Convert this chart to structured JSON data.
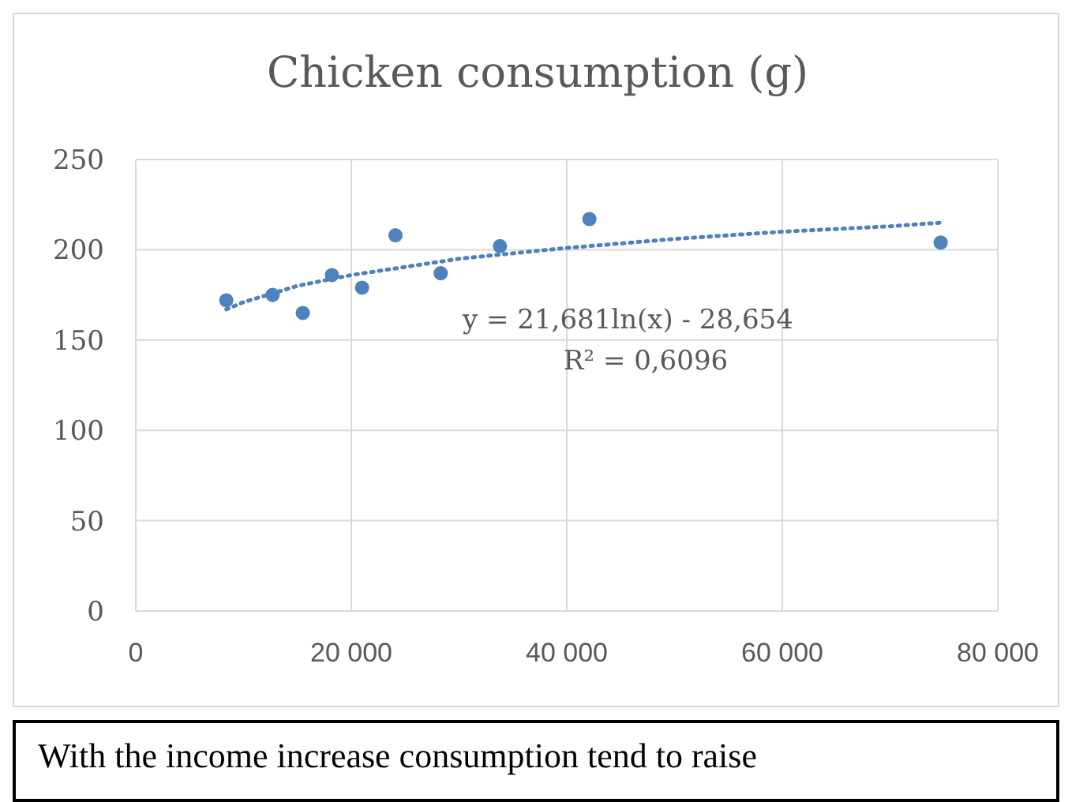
{
  "chart_data": {
    "type": "scatter",
    "title": "Chicken consumption (g)",
    "x": [
      8400,
      12700,
      15500,
      18200,
      21000,
      24100,
      28300,
      33800,
      42100,
      74700
    ],
    "series": [
      {
        "color": "#4f81bd",
        "marker": "circle",
        "values": [
          172,
          175,
          165,
          186,
          179,
          208,
          187,
          202,
          217,
          204
        ]
      },
      {
        "type": "line",
        "color": "#4f81bd",
        "marker": "none",
        "line_style": "dotted",
        "x": [
          8400,
          10000,
          15000,
          20000,
          30000,
          40000,
          50000,
          60000,
          70000,
          74700
        ],
        "values": [
          167,
          171,
          180,
          186,
          195,
          201,
          206,
          210,
          213,
          215
        ]
      }
    ],
    "xlim": [
      0,
      80000
    ],
    "xticks": [
      0,
      {
        "value": 20000,
        "label": "20 000"
      },
      {
        "value": 40000,
        "label": "40 000"
      },
      {
        "value": 60000,
        "label": "60 000"
      },
      {
        "value": 80000,
        "label": "80 000"
      }
    ],
    "ylim": [
      0,
      250
    ],
    "yticks": [
      0,
      50,
      100,
      150,
      200,
      250
    ],
    "grid": true,
    "legend": false,
    "annotations": [
      "y = 21,681ln(x) - 28,654",
      "R² = 0,6096",
      "With the income increase consumption tend to raise"
    ]
  }
}
